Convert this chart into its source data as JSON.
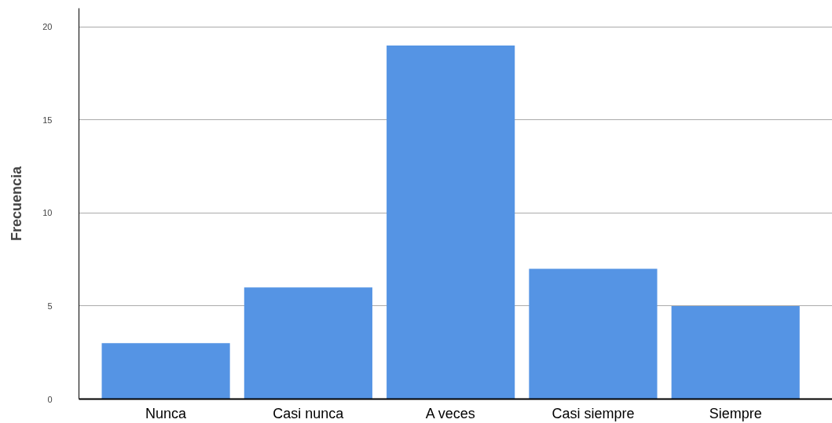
{
  "chart_data": {
    "type": "bar",
    "ylabel": "Frecuencia",
    "categories": [
      "Nunca",
      "Casi nunca",
      "A veces",
      "Casi siempre",
      "Siempre"
    ],
    "values": [
      3,
      6,
      19,
      7,
      5
    ],
    "color": "#5594e4",
    "ylim": [
      0,
      21
    ],
    "yticks": [
      0,
      5,
      10,
      15,
      20
    ],
    "grid": "y"
  }
}
